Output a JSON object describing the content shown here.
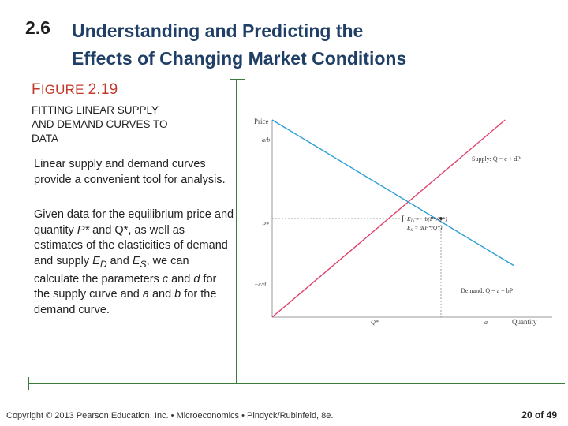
{
  "header": {
    "section_number": "2.6",
    "title_line1": "Understanding and Predicting the",
    "title_line2": "Effects of Changing Market Conditions"
  },
  "figure": {
    "label_first": "F",
    "label_rest": "IGURE",
    "label_number": "2.19",
    "caption_line1": "FITTING LINEAR SUPPLY",
    "caption_line2": "AND DEMAND CURVES TO",
    "caption_line3": "DATA"
  },
  "body": {
    "para1": "Linear supply and demand curves provide a convenient tool for analysis.",
    "para2_a": "Given data for the equilibrium price and quantity ",
    "para2_p": "P*",
    "para2_b": " and Q*, as well as estimates of the elasticities of demand and supply ",
    "para2_ed": "E",
    "para2_ed_sub": "D",
    "para2_c": " and ",
    "para2_es": "E",
    "para2_es_sub": "S",
    "para2_d": ", we can calculate the parameters ",
    "para2_cvar": "c",
    "para2_e": " and ",
    "para2_dvar": "d",
    "para2_f": " for the supply curve and ",
    "para2_avar": "a",
    "para2_g": " and ",
    "para2_bvar": "b",
    "para2_h": " for the demand curve."
  },
  "chart_data": {
    "type": "line",
    "xlabel": "Quantity",
    "ylabel": "Price",
    "y_ticks": [
      "a/b",
      "P*",
      "−c/d"
    ],
    "x_ticks": [
      "Q*",
      "a"
    ],
    "series": [
      {
        "name": "Supply: Q = c + dP",
        "color": "#e0436b",
        "points": [
          [
            0,
            -0.55
          ],
          [
            1.38,
            1.55
          ]
        ]
      },
      {
        "name": "Demand: Q = a − bP",
        "color": "#2c9fd8",
        "points": [
          [
            0,
            1.55
          ],
          [
            1.43,
            0
          ]
        ]
      }
    ],
    "equilibrium": {
      "x": 1.0,
      "y": 0.5
    },
    "annotation_lines": [
      "E",
      "D",
      " = −b(P*/Q*)",
      "E",
      "S",
      " = d(P*/Q*)"
    ],
    "supply_label": "Supply: Q = c + dP",
    "demand_label": "Demand: Q = a − bP",
    "xlim": [
      0,
      1.43
    ],
    "ylim": [
      -0.55,
      1.55
    ]
  },
  "footer": {
    "copyright": "Copyright © 2013  Pearson Education, Inc. • Microeconomics  • Pindyck/Rubinfeld, 8e.",
    "page": "20 of 49"
  },
  "colors": {
    "title": "#203f66",
    "figure_label": "#c0392b",
    "frame": "#3a7d3a",
    "supply": "#e0436b",
    "demand": "#2c9fd8"
  }
}
